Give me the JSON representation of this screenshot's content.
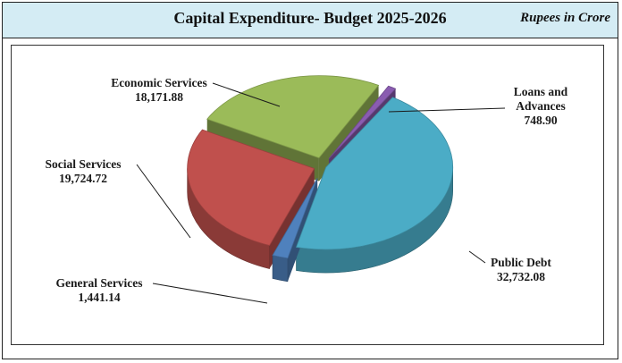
{
  "header": {
    "title": "Capital Expenditure- Budget 2025-2026",
    "unit": "Rupees in Crore"
  },
  "chart_data": {
    "type": "pie",
    "title": "Capital Expenditure- Budget 2025-2026",
    "unit": "Rupees in Crore",
    "slices": [
      {
        "label_lines": [
          "Loans and",
          "Advances"
        ],
        "value": 748.9,
        "value_text": "748.90",
        "color": "#8a5cb0"
      },
      {
        "label_lines": [
          "Public Debt"
        ],
        "value": 32732.08,
        "value_text": "32,732.08",
        "color": "#4bacc6"
      },
      {
        "label_lines": [
          "General Services"
        ],
        "value": 1441.14,
        "value_text": "1,441.14",
        "color": "#4f81bd"
      },
      {
        "label_lines": [
          "Social Services"
        ],
        "value": 19724.72,
        "value_text": "19,724.72",
        "color": "#c0504d"
      },
      {
        "label_lines": [
          "Economic Services"
        ],
        "value": 18171.88,
        "value_text": "18,171.88",
        "color": "#9bbb59"
      }
    ]
  }
}
